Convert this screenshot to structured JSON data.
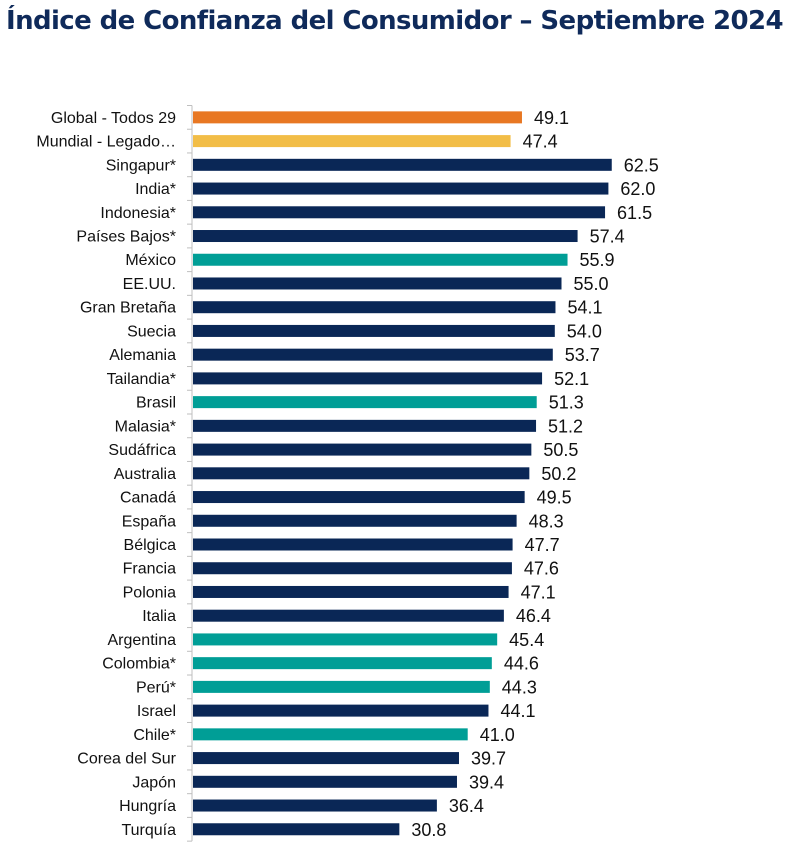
{
  "colors": {
    "title": "#0f2a5a",
    "global": "#e87722",
    "legacy": "#f2bd47",
    "country": "#0a2756",
    "latam": "#009e96"
  },
  "chart_data": {
    "type": "bar",
    "orientation": "horizontal",
    "title": "Índice de Confianza del Consumidor – Septiembre 2024",
    "xlabel": "",
    "ylabel": "",
    "xlim": [
      0,
      65
    ],
    "grid": false,
    "categories": [
      "Global - Todos 29",
      "Mundial - Legado…",
      "Singapur*",
      "India*",
      "Indonesia*",
      "Países Bajos*",
      "México",
      "EE.UU.",
      "Gran Bretaña",
      "Suecia",
      "Alemania",
      "Tailandia*",
      "Brasil",
      "Malasia*",
      "Sudáfrica",
      "Australia",
      "Canadá",
      "España",
      "Bélgica",
      "Francia",
      "Polonia",
      "Italia",
      "Argentina",
      "Colombia*",
      "Perú*",
      "Israel",
      "Chile*",
      "Corea del Sur",
      "Japón",
      "Hungría",
      "Turquía"
    ],
    "values": [
      49.1,
      47.4,
      62.5,
      62.0,
      61.5,
      57.4,
      55.9,
      55.0,
      54.1,
      54.0,
      53.7,
      52.1,
      51.3,
      51.2,
      50.5,
      50.2,
      49.5,
      48.3,
      47.7,
      47.6,
      47.1,
      46.4,
      45.4,
      44.6,
      44.3,
      44.1,
      41.0,
      39.7,
      39.4,
      36.4,
      30.8
    ],
    "value_labels": [
      "49.1",
      "47.4",
      "62.5",
      "62.0",
      "61.5",
      "57.4",
      "55.9",
      "55.0",
      "54.1",
      "54.0",
      "53.7",
      "52.1",
      "51.3",
      "51.2",
      "50.5",
      "50.2",
      "49.5",
      "48.3",
      "47.7",
      "47.6",
      "47.1",
      "46.4",
      "45.4",
      "44.6",
      "44.3",
      "44.1",
      "41.0",
      "39.7",
      "39.4",
      "36.4",
      "30.8"
    ],
    "groups": [
      "global",
      "legacy",
      "country",
      "country",
      "country",
      "country",
      "latam",
      "country",
      "country",
      "country",
      "country",
      "country",
      "latam",
      "country",
      "country",
      "country",
      "country",
      "country",
      "country",
      "country",
      "country",
      "country",
      "latam",
      "latam",
      "latam",
      "country",
      "latam",
      "country",
      "country",
      "country",
      "country"
    ]
  }
}
